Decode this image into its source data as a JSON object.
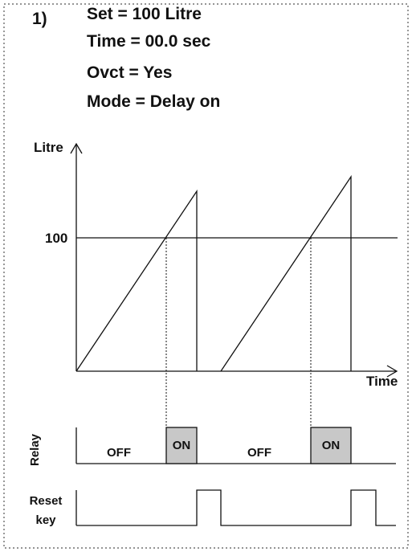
{
  "label": "1)",
  "settings": [
    "Set = 100 Litre",
    "Time = 00.0 sec",
    "Ovct = Yes",
    "Mode = Delay on"
  ],
  "graph": {
    "y_label": "Litre",
    "x_label": "Time",
    "level_label": "100"
  },
  "relay": {
    "label": "Relay",
    "states": [
      "OFF",
      "ON",
      "OFF",
      "ON"
    ]
  },
  "reset": {
    "label": [
      "Reset",
      "key"
    ]
  }
}
